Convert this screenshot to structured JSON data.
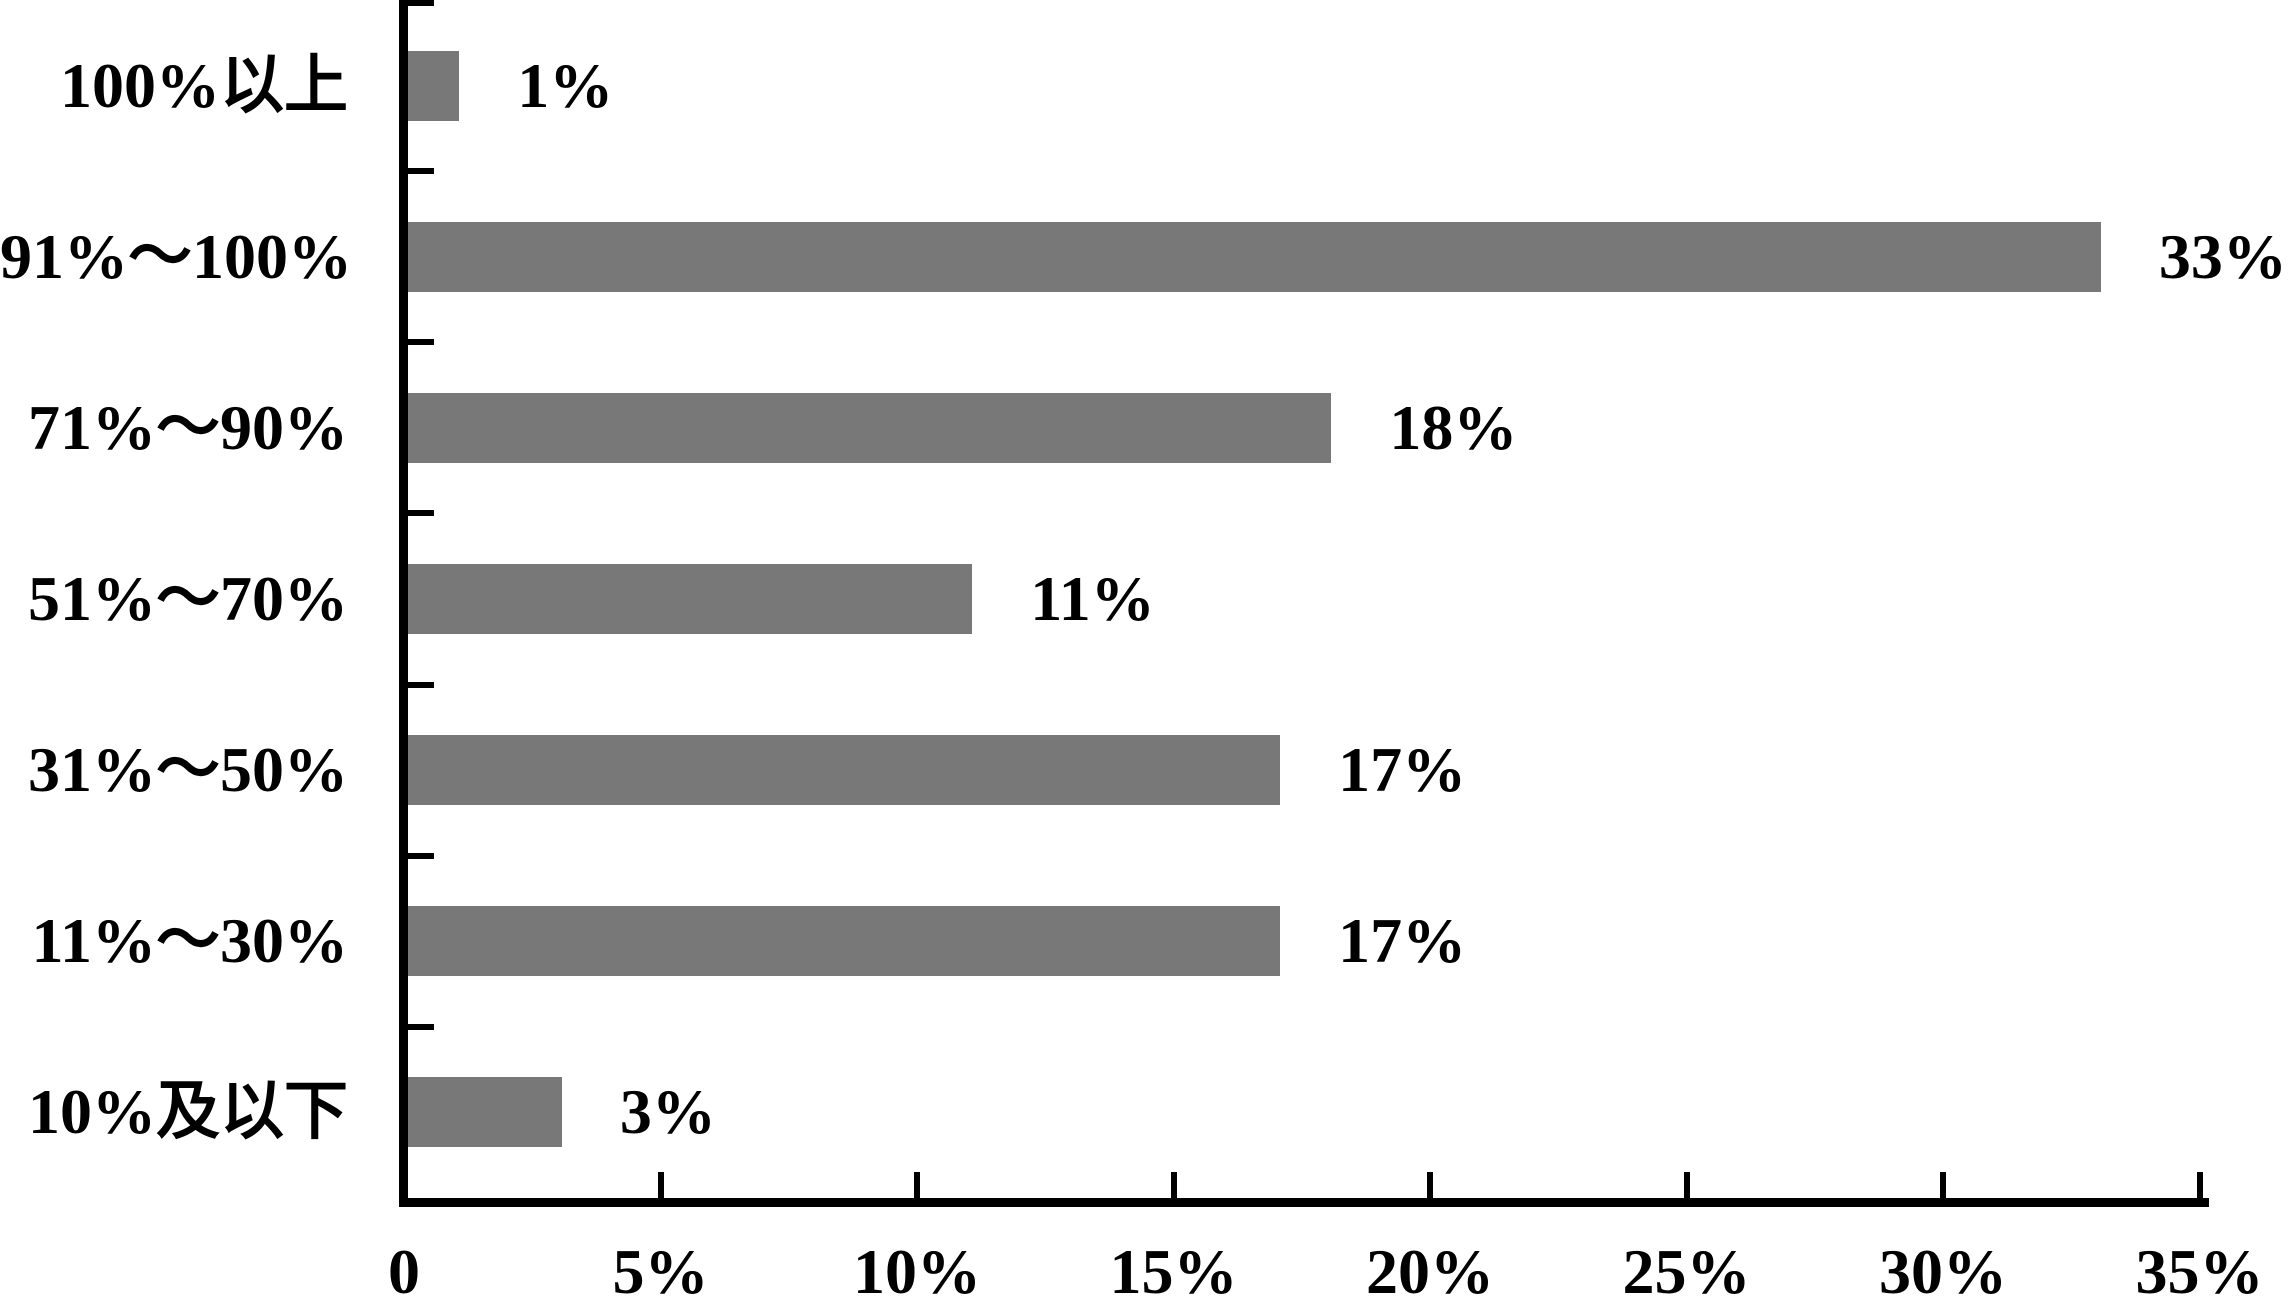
{
  "chart_data": {
    "type": "bar",
    "orientation": "horizontal",
    "title": "",
    "xlabel": "",
    "ylabel": "",
    "categories": [
      "100%以上",
      "91%～100%",
      "71%～90%",
      "51%～70%",
      "31%～50%",
      "11%～30%",
      "10%及以下"
    ],
    "values": [
      1,
      33,
      18,
      11,
      17,
      17,
      3
    ],
    "data_labels": [
      "1%",
      "33%",
      "18%",
      "11%",
      "17%",
      "17%",
      "3%"
    ],
    "x_ticks": [
      0,
      5,
      10,
      15,
      20,
      25,
      30,
      35
    ],
    "x_tick_labels": [
      "0",
      "5%",
      "10%",
      "15%",
      "20%",
      "25%",
      "30%",
      "35%"
    ],
    "xlim": [
      0,
      35
    ],
    "grid": false,
    "legend": "none",
    "bar_color": "#787878",
    "axis_color": "#000000",
    "text_color": "#000000",
    "background_color": "#ffffff"
  }
}
